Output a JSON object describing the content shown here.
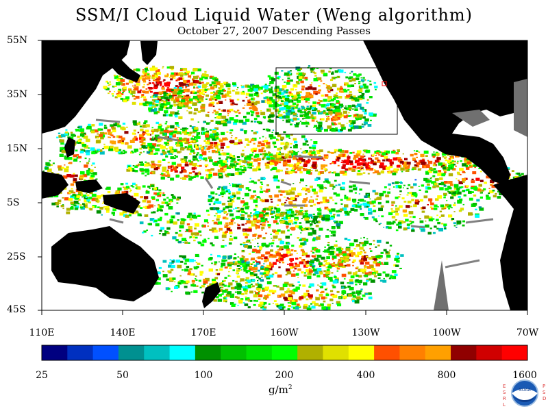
{
  "title": "SSM/I Cloud Liquid Water (Weng algorithm)",
  "subtitle": "October 27, 2007  Descending Passes",
  "lat_labels": [
    "55N",
    "35N",
    "15N",
    "5S",
    "25S",
    "45S"
  ],
  "lon_labels": [
    "110E",
    "140E",
    "170E",
    "160W",
    "130W",
    "100W",
    "70W"
  ],
  "colorbar": {
    "colors": [
      "#000080",
      "#0030c0",
      "#0050ff",
      "#009090",
      "#00c0c0",
      "#00ffff",
      "#009000",
      "#00c000",
      "#00e000",
      "#00ff00",
      "#b0b000",
      "#e0e000",
      "#ffff00",
      "#ff5000",
      "#ff8000",
      "#ffa000",
      "#900000",
      "#d00000",
      "#ff0000"
    ],
    "tick_labels": [
      "25",
      "50",
      "100",
      "200",
      "400",
      "800",
      "1600"
    ]
  },
  "units": "g/m",
  "units_sup": "2",
  "logo": {
    "text": "NOAA",
    "left_letters": "ESRL",
    "right_letters": "PSD"
  },
  "colors": {
    "land": "#000000",
    "no_data": "#707070",
    "box": "#000000"
  }
}
